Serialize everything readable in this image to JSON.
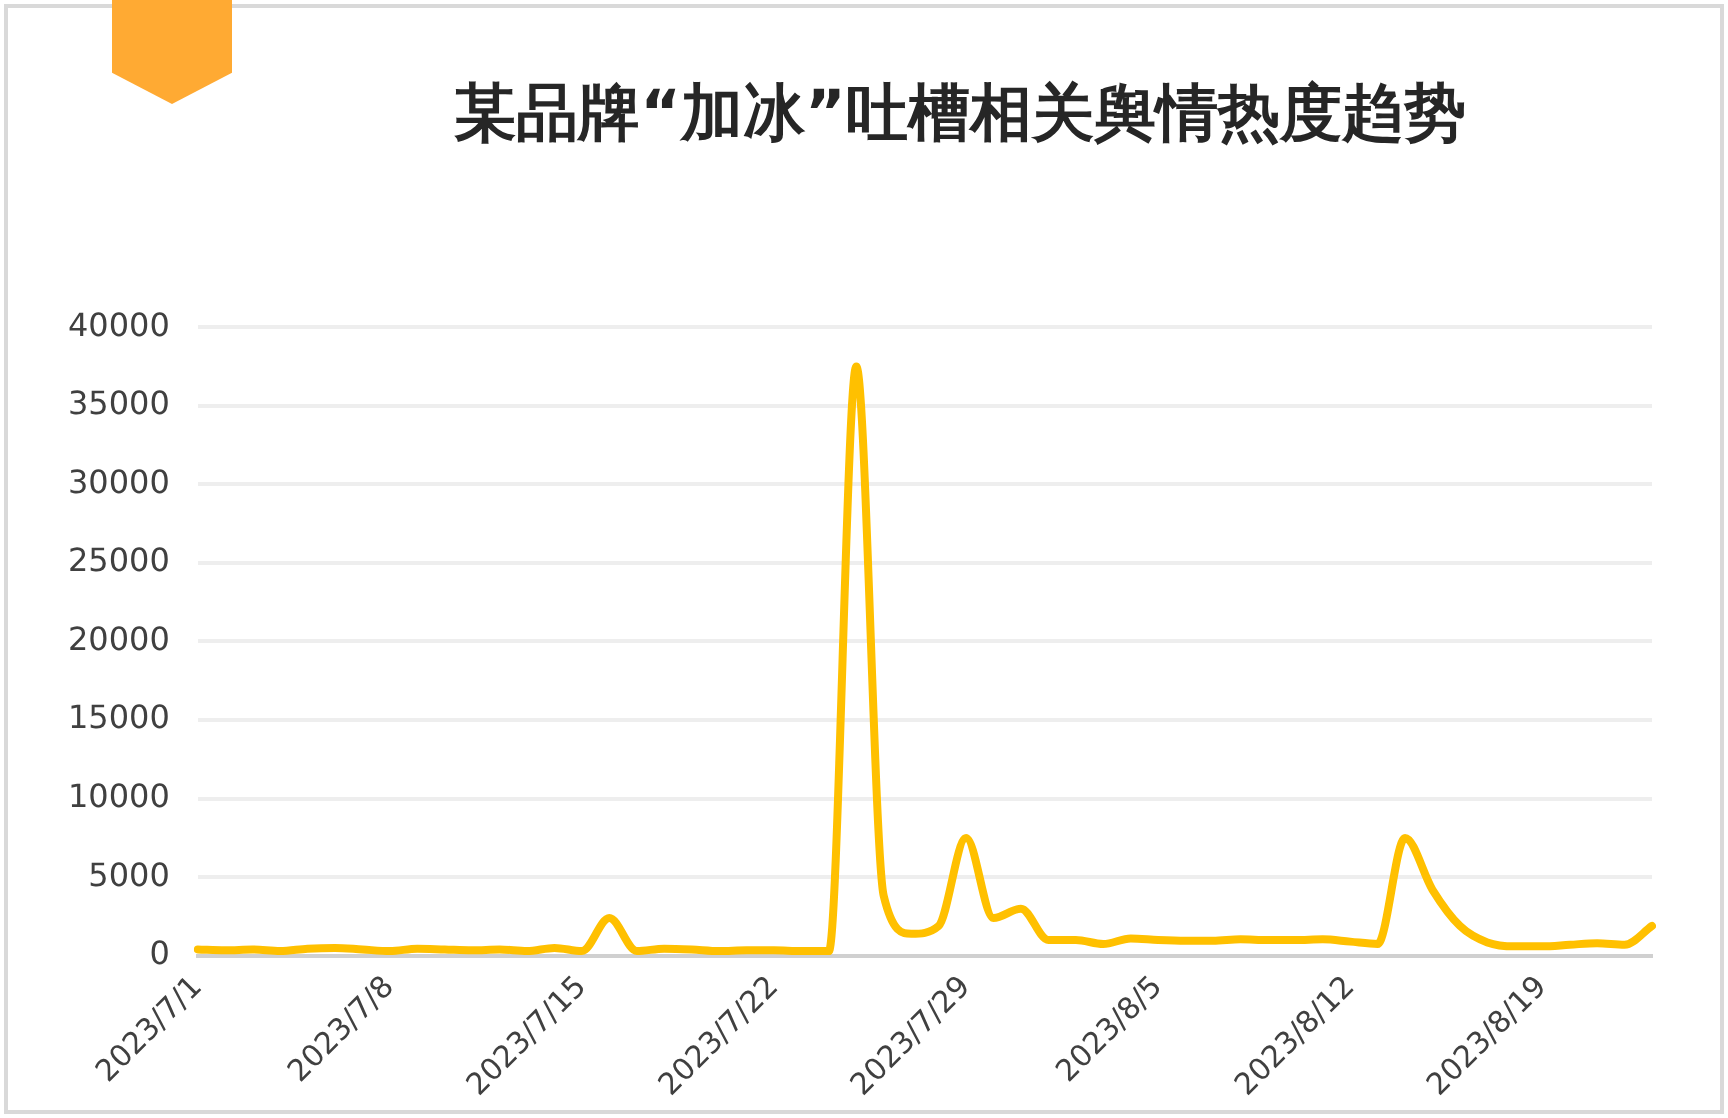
{
  "chart_data": {
    "type": "line",
    "title": "某品牌“加冰”吐槽相关舆情热度趋势",
    "categories": [
      "2023/7/1",
      null,
      null,
      null,
      null,
      null,
      null,
      "2023/7/8",
      null,
      null,
      null,
      null,
      null,
      null,
      "2023/7/15",
      null,
      null,
      null,
      null,
      null,
      null,
      "2023/7/22",
      null,
      null,
      null,
      null,
      null,
      null,
      "2023/7/29",
      null,
      null,
      null,
      null,
      null,
      null,
      "2023/8/5",
      null,
      null,
      null,
      null,
      null,
      null,
      "2023/8/12",
      null,
      null,
      null,
      null,
      null,
      null,
      "2023/8/19",
      null,
      null,
      null,
      null
    ],
    "series": [
      {
        "color": "#ffc000",
        "values": [
          400,
          350,
          400,
          300,
          450,
          500,
          400,
          300,
          450,
          400,
          350,
          400,
          300,
          500,
          300,
          2400,
          300,
          450,
          400,
          300,
          350,
          350,
          300,
          300,
          37500,
          3800,
          1400,
          1900,
          7500,
          2400,
          3000,
          1000,
          1000,
          750,
          1100,
          1000,
          950,
          950,
          1050,
          1000,
          1000,
          1050,
          900,
          750,
          7500,
          4200,
          1900,
          850,
          600,
          600,
          700,
          800,
          700,
          1900
        ]
      }
    ],
    "ylim": [
      0,
      40000
    ],
    "yticks": [
      0,
      5000,
      10000,
      15000,
      20000,
      25000,
      30000,
      35000,
      40000
    ],
    "grid": "y",
    "legend": false,
    "marker": "none",
    "line_style": "solid"
  }
}
